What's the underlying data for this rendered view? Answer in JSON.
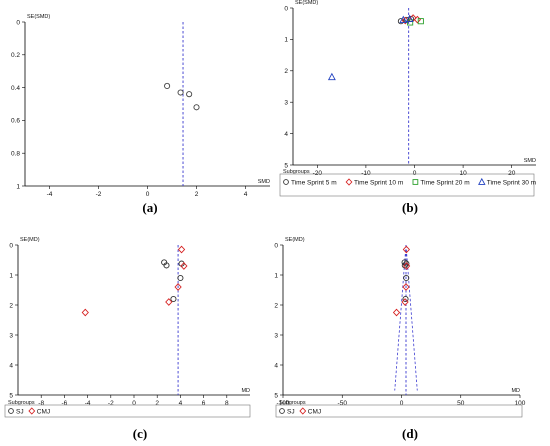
{
  "chart_data": [
    {
      "panel": "(a)",
      "type": "scatter",
      "subtype": "funnel",
      "xlabel": "SMD",
      "ylabel": "SE(SMD)",
      "xlim": [
        -5,
        5
      ],
      "ylim": [
        0,
        1
      ],
      "y_reversed": true,
      "xticks": [
        -4,
        -2,
        0,
        2,
        4
      ],
      "yticks": [
        0,
        0.2,
        0.4,
        0.6,
        0.8,
        1
      ],
      "ref_line_x": 1.45,
      "funnel": false,
      "legend_title": "",
      "series": [
        {
          "marker": "circle",
          "color": "#444444",
          "points": [
            [
              0.8,
              0.39
            ],
            [
              1.35,
              0.43
            ],
            [
              1.7,
              0.44
            ],
            [
              2.0,
              0.52
            ]
          ]
        }
      ]
    },
    {
      "panel": "(b)",
      "type": "scatter",
      "subtype": "funnel",
      "xlabel": "SMD",
      "ylabel": "SE(SMD)",
      "xlim": [
        -25,
        25
      ],
      "ylim": [
        0,
        5
      ],
      "y_reversed": true,
      "xticks": [
        -20,
        -10,
        0,
        10,
        20
      ],
      "yticks": [
        0,
        1,
        2,
        3,
        4,
        5
      ],
      "ref_line_x": -1.2,
      "funnel": false,
      "legend_title": "Subgroups",
      "series": [
        {
          "name": "Time Sprint 5 m",
          "marker": "circle",
          "color": "#333333",
          "points": [
            [
              -2.8,
              0.42
            ],
            [
              -1.6,
              0.38
            ],
            [
              -0.7,
              0.35
            ]
          ]
        },
        {
          "name": "Time Sprint 10 m",
          "marker": "diamond",
          "color": "#d62020",
          "points": [
            [
              -1.9,
              0.4
            ],
            [
              -0.3,
              0.32
            ],
            [
              0.6,
              0.37
            ]
          ]
        },
        {
          "name": "Time Sprint 20 m",
          "marker": "square",
          "color": "#2ca02c",
          "points": [
            [
              1.3,
              0.42
            ],
            [
              -0.9,
              0.46
            ]
          ]
        },
        {
          "name": "Time Sprint 30 m",
          "marker": "triangle",
          "color": "#2040c0",
          "points": [
            [
              -17.0,
              2.2
            ],
            [
              -2.3,
              0.38
            ],
            [
              -1.0,
              0.35
            ]
          ]
        }
      ]
    },
    {
      "panel": "(c)",
      "type": "scatter",
      "subtype": "funnel",
      "xlabel": "MD",
      "ylabel": "SE(MD)",
      "xlim": [
        -10,
        10
      ],
      "ylim": [
        0,
        5
      ],
      "y_reversed": true,
      "xticks": [
        -8,
        -6,
        -4,
        -2,
        0,
        2,
        4,
        6,
        8
      ],
      "yticks": [
        0,
        1,
        2,
        3,
        4,
        5
      ],
      "ref_line_x": 3.8,
      "funnel": false,
      "legend_title": "Subgroups",
      "series": [
        {
          "name": "SJ",
          "marker": "circle",
          "color": "#333333",
          "points": [
            [
              2.6,
              0.58
            ],
            [
              2.8,
              0.68
            ],
            [
              4.1,
              0.62
            ],
            [
              4.0,
              1.1
            ],
            [
              3.4,
              1.8
            ]
          ]
        },
        {
          "name": "CMJ",
          "marker": "diamond",
          "color": "#d62020",
          "points": [
            [
              4.1,
              0.15
            ],
            [
              4.3,
              0.7
            ],
            [
              3.8,
              1.4
            ],
            [
              3.0,
              1.9
            ],
            [
              -4.2,
              2.25
            ]
          ]
        }
      ]
    },
    {
      "panel": "(d)",
      "type": "scatter",
      "subtype": "funnel",
      "xlabel": "MD",
      "ylabel": "SE(MD)",
      "xlim": [
        -100,
        100
      ],
      "ylim": [
        0,
        5
      ],
      "y_reversed": true,
      "xticks": [
        -100,
        -50,
        0,
        50,
        100
      ],
      "yticks": [
        0,
        1,
        2,
        3,
        4,
        5
      ],
      "ref_line_x": 3.8,
      "funnel": true,
      "legend_title": "Subgroups",
      "series": [
        {
          "name": "SJ",
          "marker": "circle",
          "color": "#333333",
          "points": [
            [
              2.6,
              0.58
            ],
            [
              2.8,
              0.68
            ],
            [
              4.1,
              0.62
            ],
            [
              4.0,
              1.1
            ],
            [
              3.4,
              1.8
            ]
          ]
        },
        {
          "name": "CMJ",
          "marker": "diamond",
          "color": "#d62020",
          "points": [
            [
              4.1,
              0.15
            ],
            [
              4.3,
              0.7
            ],
            [
              3.8,
              1.4
            ],
            [
              3.0,
              1.9
            ],
            [
              -4.2,
              2.25
            ]
          ]
        }
      ]
    }
  ]
}
